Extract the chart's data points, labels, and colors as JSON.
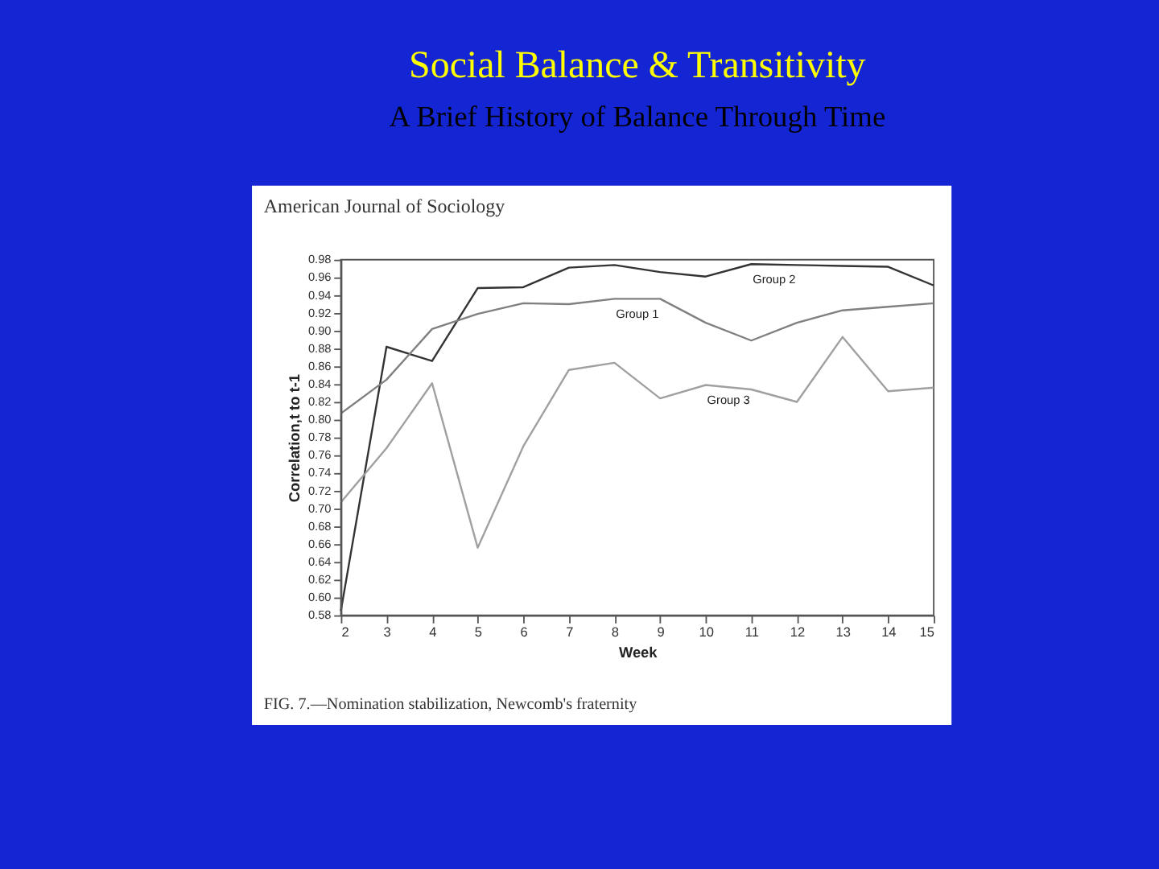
{
  "chart_data": {
    "type": "line",
    "title": "Social Balance & Transitivity",
    "subtitle": "A Brief History of Balance Through Time",
    "xlabel": "Week",
    "ylabel": "Correlation,t to t-1",
    "annotations": [
      "American Journal of Sociology",
      "FIG. 7.—Nomination stabilization, Newcomb's fraternity"
    ],
    "x": [
      2,
      3,
      4,
      5,
      6,
      7,
      8,
      9,
      10,
      11,
      12,
      13,
      14,
      15
    ],
    "series": [
      {
        "name": "Group 2",
        "color": "#333333",
        "values": [
          0.585,
          0.882,
          0.866,
          0.948,
          0.949,
          0.971,
          0.974,
          0.966,
          0.961,
          0.975,
          0.974,
          0.973,
          0.972,
          0.951
        ]
      },
      {
        "name": "Group 1",
        "color": "#808080",
        "values": [
          0.807,
          0.845,
          0.902,
          0.919,
          0.931,
          0.93,
          0.936,
          0.936,
          0.909,
          0.889,
          0.909,
          0.923,
          0.927,
          0.931
        ]
      },
      {
        "name": "Group 3",
        "color": "#a0a0a0",
        "values": [
          0.707,
          0.768,
          0.841,
          0.656,
          0.77,
          0.856,
          0.864,
          0.824,
          0.839,
          0.834,
          0.82,
          0.893,
          0.832,
          0.836
        ]
      }
    ],
    "xlim": [
      2,
      15
    ],
    "xticks": [
      2,
      3,
      4,
      5,
      6,
      7,
      8,
      9,
      10,
      11,
      12,
      13,
      14,
      15
    ],
    "ylim": [
      0.58,
      0.98
    ],
    "yticks": [
      0.58,
      {
        "value": 0.6,
        "label": "0.60"
      },
      0.62,
      0.64,
      0.66,
      0.68,
      {
        "value": 0.7,
        "label": "0.70"
      },
      0.72,
      0.74,
      0.76,
      0.78,
      {
        "value": 0.8,
        "label": "0.80"
      },
      0.82,
      0.84,
      0.86,
      0.88,
      {
        "value": 0.9,
        "label": "0.90"
      },
      0.92,
      0.94,
      0.96,
      0.98
    ],
    "grid": false,
    "legend": false,
    "marker": "none",
    "line_style": "solid"
  }
}
